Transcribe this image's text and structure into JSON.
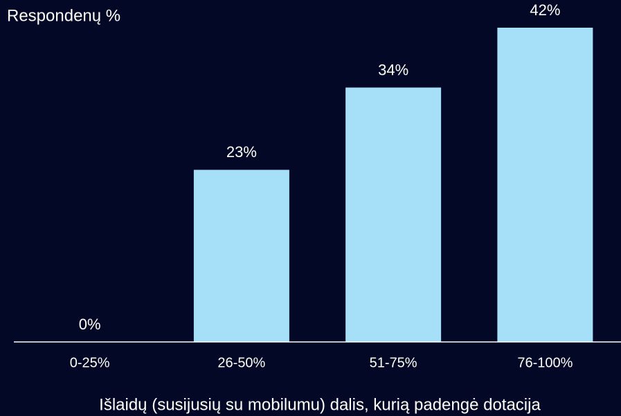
{
  "chart_data": {
    "type": "bar",
    "ylabel": "Respondenų %",
    "xlabel": "Išlaidų (susijusių su mobilumu) dalis, kurią padengė dotacija",
    "categories": [
      "0-25%",
      "26-50%",
      "51-75%",
      "76-100%"
    ],
    "values": [
      0,
      23,
      34,
      42
    ],
    "value_labels": [
      "0%",
      "23%",
      "34%",
      "42%"
    ],
    "color": "#a6e0f8",
    "ylim": [
      0,
      42
    ]
  }
}
